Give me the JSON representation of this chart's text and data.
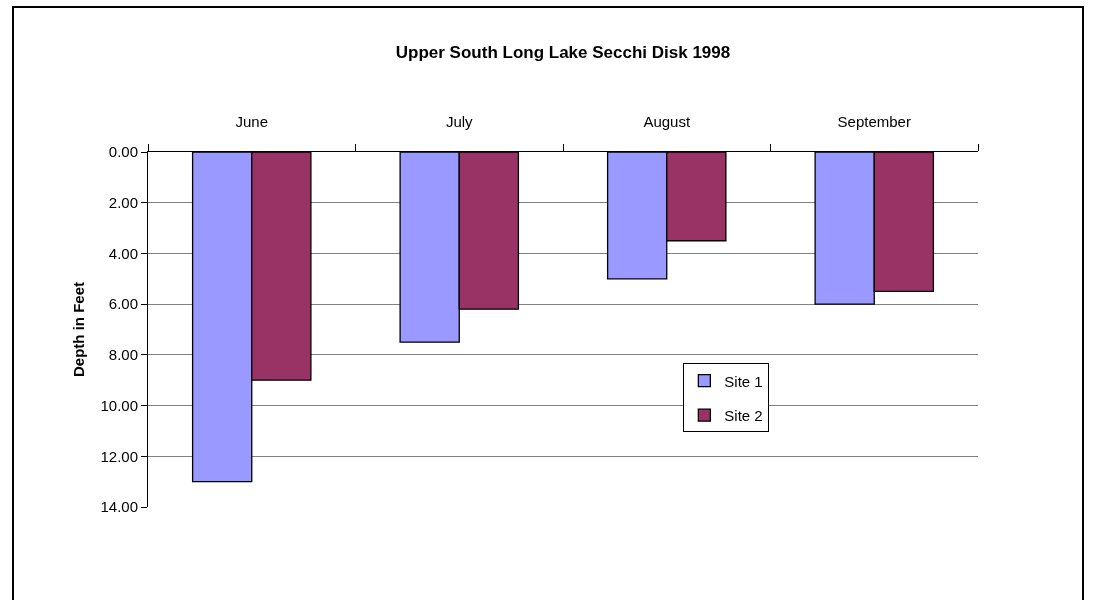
{
  "chart_data": {
    "type": "bar",
    "title": "Upper South Long Lake Secchi Disk 1998",
    "ylabel": "Depth in Feet",
    "categories": [
      "June",
      "July",
      "August",
      "September"
    ],
    "series": [
      {
        "name": "Site 1",
        "color": "#9999ff",
        "values": [
          13.0,
          7.5,
          5.0,
          6.0
        ]
      },
      {
        "name": "Site 2",
        "color": "#993366",
        "values": [
          9.0,
          6.2,
          3.5,
          5.5
        ]
      }
    ],
    "ylim": [
      14,
      0
    ],
    "yticks": [
      {
        "value": 0,
        "label": "0.00"
      },
      {
        "value": 2,
        "label": "2.00"
      },
      {
        "value": 4,
        "label": "4.00"
      },
      {
        "value": 6,
        "label": "6.00"
      },
      {
        "value": 8,
        "label": "8.00"
      },
      {
        "value": 10,
        "label": "10.00"
      },
      {
        "value": 12,
        "label": "12.00"
      },
      {
        "value": 14,
        "label": "14.00"
      }
    ],
    "grid": "y",
    "legend": "bottom right"
  }
}
